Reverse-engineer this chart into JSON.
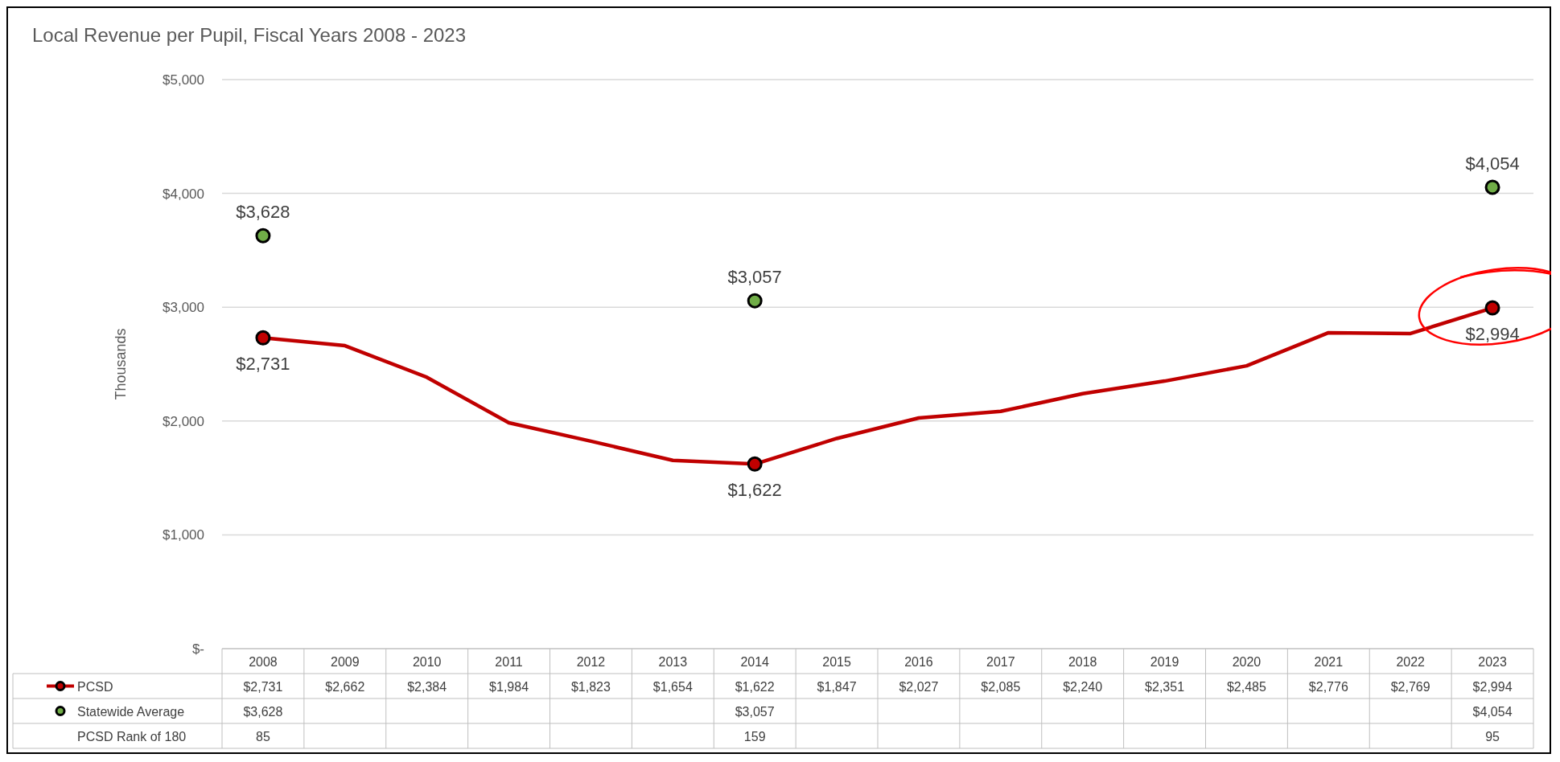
{
  "chart_data": {
    "type": "line",
    "title": "Local Revenue per Pupil, Fiscal Years 2008 - 2023",
    "ylabel": "Thousands",
    "categories": [
      "2008",
      "2009",
      "2010",
      "2011",
      "2012",
      "2013",
      "2014",
      "2015",
      "2016",
      "2017",
      "2018",
      "2019",
      "2020",
      "2021",
      "2022",
      "2023"
    ],
    "series": [
      {
        "name": "PCSD",
        "color": "#c00000",
        "values": [
          2731,
          2662,
          2384,
          1984,
          1823,
          1654,
          1622,
          1847,
          2027,
          2085,
          2240,
          2351,
          2485,
          2776,
          2769,
          2994
        ],
        "value_labels": [
          "$2,731",
          "$2,662",
          "$2,384",
          "$1,984",
          "$1,823",
          "$1,654",
          "$1,622",
          "$1,847",
          "$2,027",
          "$2,085",
          "$2,240",
          "$2,351",
          "$2,485",
          "$2,776",
          "$2,769",
          "$2,994"
        ]
      },
      {
        "name": "Statewide Average",
        "type": "scatter",
        "color": "#70ad47",
        "marker": "circle",
        "values": [
          3628,
          null,
          null,
          null,
          null,
          null,
          3057,
          null,
          null,
          null,
          null,
          null,
          null,
          null,
          null,
          4054
        ],
        "value_labels": [
          "$3,628",
          null,
          null,
          null,
          null,
          null,
          "$3,057",
          null,
          null,
          null,
          null,
          null,
          null,
          null,
          null,
          "$4,054"
        ]
      }
    ],
    "ylim": [
      0,
      5000
    ],
    "yticks": [
      {
        "value": 0,
        "label": "$-"
      },
      {
        "value": 1000,
        "label": "$1,000"
      },
      {
        "value": 2000,
        "label": "$2,000"
      },
      {
        "value": 3000,
        "label": "$3,000"
      },
      {
        "value": 4000,
        "label": "$4,000"
      },
      {
        "value": 5000,
        "label": "$5,000"
      }
    ],
    "grid": "y",
    "legend": "bottom",
    "data_labels": true,
    "annotations": [
      {
        "text": "$2,731",
        "x": "2008",
        "y": 2731
      },
      {
        "text": "$1,622",
        "x": "2014",
        "y": 1622
      },
      {
        "text": "$2,994",
        "x": "2023",
        "y": 2994
      },
      {
        "text": "$3,628",
        "x": "2008",
        "y": 3628
      },
      {
        "text": "$3,057",
        "x": "2014",
        "y": 3057
      },
      {
        "text": "$4,054",
        "x": "2023",
        "y": 4054
      },
      "PCSD Rank of 180",
      "85",
      "159",
      "95"
    ]
  }
}
